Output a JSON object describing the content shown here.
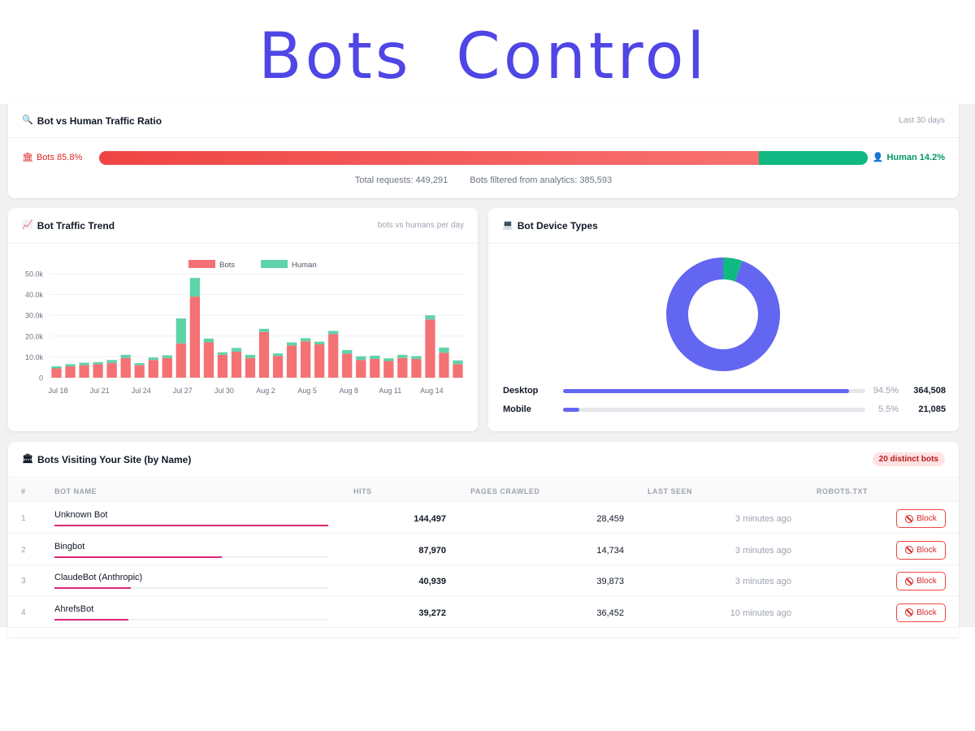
{
  "page_title": "Bots Control",
  "ratio": {
    "icon": "bot-emoji",
    "title": "Bot vs Human Traffic Ratio",
    "period": "Last 30 days",
    "bots_label": "Bots 85.8%",
    "human_label": "Human 14.2%",
    "bots_fraction": 0.858,
    "total_requests": "Total requests: 449,291",
    "filtered": "Bots filtered from analytics: 385,593",
    "colors": {
      "bots": "#ef4444",
      "human": "#10b981"
    }
  },
  "trend": {
    "title": "Bot Traffic Trend",
    "subtitle": "bots vs humans per day"
  },
  "devices": {
    "title": "Bot Device Types",
    "rows": [
      {
        "name": "Desktop",
        "pct_label": "94.5%",
        "count": "364,508",
        "fraction": 0.945
      },
      {
        "name": "Mobile",
        "pct_label": "5.5%",
        "count": "21,085",
        "fraction": 0.055
      }
    ],
    "colors": {
      "desktop": "#6366f1",
      "mobile": "#10b981"
    }
  },
  "bots_table": {
    "title": "Bots Visiting Your Site (by Name)",
    "badge": "20 distinct bots",
    "headers": {
      "num": "#",
      "name": "BOT NAME",
      "hits": "HITS",
      "pages": "PAGES CRAWLED",
      "seen": "LAST SEEN",
      "robots": "ROBOTS.TXT"
    },
    "block_label": "Block",
    "rows": [
      {
        "num": "1",
        "name": "Unknown Bot",
        "hits": "144,497",
        "pages": "28,459",
        "seen": "3 minutes ago",
        "share": 1.0
      },
      {
        "num": "2",
        "name": "Bingbot",
        "hits": "87,970",
        "pages": "14,734",
        "seen": "3 minutes ago",
        "share": 0.61
      },
      {
        "num": "3",
        "name": "ClaudeBot (Anthropic)",
        "hits": "40,939",
        "pages": "39,873",
        "seen": "3 minutes ago",
        "share": 0.28
      },
      {
        "num": "4",
        "name": "AhrefsBot",
        "hits": "39,272",
        "pages": "36,452",
        "seen": "10 minutes ago",
        "share": 0.27
      }
    ]
  },
  "chart_data": {
    "type": "bar",
    "stacked": true,
    "legend": "top",
    "categories": [
      "Jul 18",
      "Jul 19",
      "Jul 20",
      "Jul 21",
      "Jul 22",
      "Jul 23",
      "Jul 24",
      "Jul 25",
      "Jul 26",
      "Jul 27",
      "Jul 28",
      "Jul 29",
      "Jul 30",
      "Jul 31",
      "Aug 1",
      "Aug 2",
      "Aug 3",
      "Aug 4",
      "Aug 5",
      "Aug 6",
      "Aug 7",
      "Aug 8",
      "Aug 9",
      "Aug 10",
      "Aug 11",
      "Aug 12",
      "Aug 13",
      "Aug 14",
      "Aug 15",
      "Aug 16"
    ],
    "tick_labels": [
      "Jul 18",
      "Jul 21",
      "Jul 24",
      "Jul 27",
      "Jul 30",
      "Aug 2",
      "Aug 5",
      "Aug 8",
      "Aug 11",
      "Aug 14"
    ],
    "y_ticks": [
      "0",
      "10.0k",
      "20.0k",
      "30.0k",
      "40.0k",
      "50.0k"
    ],
    "ylim": [
      0,
      50000
    ],
    "series": [
      {
        "name": "Bots",
        "color": "#f47174",
        "values": [
          4500,
          5500,
          6000,
          6500,
          7000,
          9500,
          6000,
          8500,
          9500,
          16500,
          39000,
          17000,
          11000,
          12500,
          9500,
          22000,
          10500,
          15500,
          17500,
          16000,
          21000,
          11500,
          8500,
          9000,
          8000,
          9500,
          9000,
          28000,
          12000,
          6500
        ]
      },
      {
        "name": "Human",
        "color": "#5fd3a8",
        "values": [
          1000,
          1000,
          1200,
          1000,
          1500,
          1500,
          1000,
          1200,
          1300,
          12000,
          9000,
          1800,
          1200,
          1800,
          1500,
          1500,
          1200,
          1500,
          1500,
          1300,
          1500,
          1800,
          1800,
          1600,
          1300,
          1500,
          1400,
          2000,
          2500,
          1800
        ]
      }
    ]
  }
}
